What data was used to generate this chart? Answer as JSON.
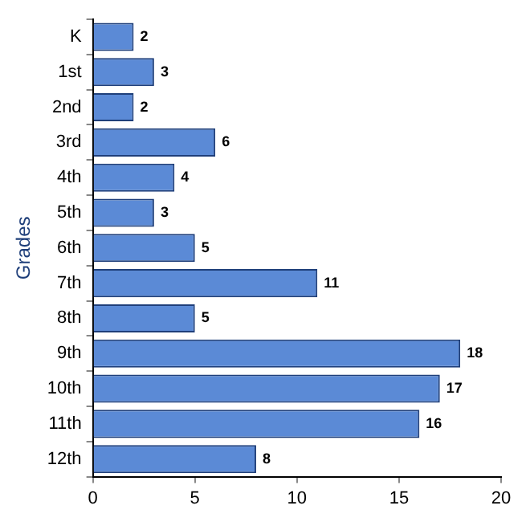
{
  "chart_data": {
    "type": "bar",
    "orientation": "horizontal",
    "ylabel": "Grades",
    "categories": [
      "K",
      "1st",
      "2nd",
      "3rd",
      "4th",
      "5th",
      "6th",
      "7th",
      "8th",
      "9th",
      "10th",
      "11th",
      "12th"
    ],
    "values": [
      2,
      3,
      2,
      6,
      4,
      3,
      5,
      11,
      5,
      18,
      17,
      16,
      8
    ],
    "color": "#5b8ad6",
    "xlim": [
      0,
      20
    ],
    "xticks": [
      0,
      5,
      10,
      15,
      20
    ],
    "grid": false,
    "data_labels": true
  }
}
